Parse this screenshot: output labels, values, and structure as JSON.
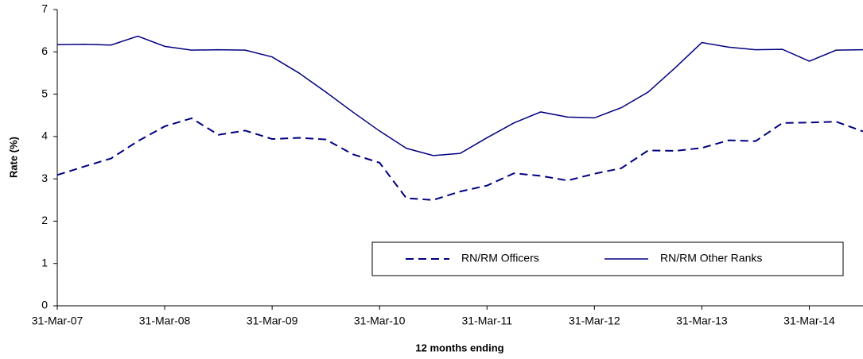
{
  "chart_data": {
    "type": "line",
    "x_label": "12 months ending",
    "y_label": "Rate (%)",
    "categories": [
      "31-Mar-07",
      null,
      null,
      null,
      "31-Mar-08",
      null,
      null,
      null,
      "31-Mar-09",
      null,
      null,
      null,
      "31-Mar-10",
      null,
      null,
      null,
      "31-Mar-11",
      null,
      null,
      null,
      "31-Mar-12",
      null,
      null,
      null,
      "31-Mar-13",
      null,
      null,
      null,
      "31-Mar-14",
      null,
      null
    ],
    "series": [
      {
        "name": "RN/RM Officers",
        "color": "#000080",
        "line_style": "dashed",
        "values": [
          3.09,
          3.29,
          3.48,
          3.89,
          4.24,
          4.43,
          4.04,
          4.14,
          3.94,
          3.97,
          3.93,
          3.58,
          3.38,
          2.54,
          2.5,
          2.7,
          2.84,
          3.13,
          3.07,
          2.96,
          3.12,
          3.25,
          3.67,
          3.66,
          3.73,
          3.91,
          3.89,
          4.32,
          4.33,
          4.35,
          4.12
        ]
      },
      {
        "name": "RN/RM Other Ranks",
        "color": "#000080",
        "line_style": "solid",
        "values": [
          6.17,
          6.18,
          6.16,
          6.37,
          6.13,
          6.04,
          6.05,
          6.04,
          5.88,
          5.5,
          5.05,
          4.58,
          4.13,
          3.72,
          3.55,
          3.6,
          3.97,
          4.32,
          4.58,
          4.46,
          4.44,
          4.68,
          5.05,
          5.62,
          6.22,
          6.11,
          6.05,
          6.06,
          5.78,
          6.04,
          6.05
        ]
      }
    ],
    "ylim": [
      0,
      7
    ],
    "yticks": [
      0,
      1,
      2,
      3,
      4,
      5,
      6,
      7
    ],
    "grid": false
  }
}
